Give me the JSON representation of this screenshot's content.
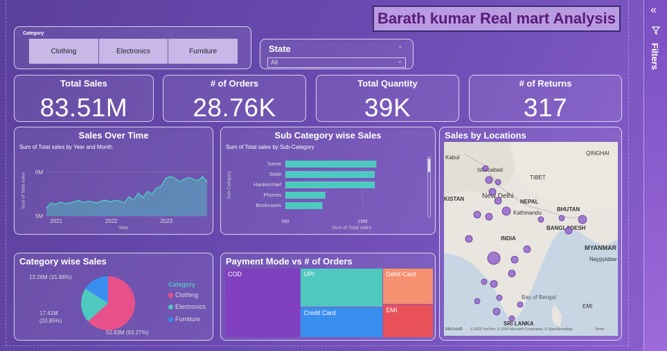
{
  "report_title": "Barath kumar Real mart Analysis",
  "category_slicer": {
    "label": "Category",
    "options": [
      "Clothing",
      "Electronics",
      "Furniture"
    ]
  },
  "state_slicer": {
    "label": "State",
    "value": "All"
  },
  "kpis": [
    {
      "label": "Total Sales",
      "value": "83.51M"
    },
    {
      "label": "# of Orders",
      "value": "28.76K"
    },
    {
      "label": "Total Quantity",
      "value": "39K"
    },
    {
      "label": "# of Returns",
      "value": "317"
    }
  ],
  "sales_over_time": {
    "title": "Sales Over Time",
    "subtitle": "Sum of Total sales by Year and Month",
    "ylabel": "Sum of Total sales",
    "xlabel": "Year",
    "yticks": [
      "5M",
      "0M"
    ],
    "xticks": [
      "2021",
      "2022",
      "2023"
    ]
  },
  "subcategory_sales": {
    "title": "Sub Category wise Sales",
    "subtitle": "Sum of Total sales by Sub-Category",
    "ylabel": "Sub-Category",
    "xlabel": "Sum of Total sales",
    "xticks": [
      "0M",
      "10M"
    ]
  },
  "category_wise": {
    "title": "Category wise Sales",
    "legend_title": "Category",
    "labels": [
      "13.26M (15.88%)",
      "17.41M (20.85%)",
      "52.83M (63.27%)"
    ]
  },
  "payment_mode": {
    "title": "Payment Mode vs # of Orders"
  },
  "sales_by_locations": {
    "title": "Sales by Locations",
    "labels": {
      "kabul": "Kabul",
      "islamabad": "Islamabad",
      "pakistan": "KISTAN",
      "new_delhi": "New Delhi",
      "nepal": "NEPAL",
      "kathmandu": "Kathmandu",
      "bhutan": "BHUTAN",
      "tibet": "TIBET",
      "qinghai": "QINGHAI",
      "bangladesh": "BANGLADESH",
      "india": "INDIA",
      "myanmar": "MYANMAR",
      "naypyidaw": "Naypyidaw",
      "bay_of_bengal": "Bay of Bengal",
      "sri_lanka": "SRI LANKA",
      "emi": "EMI"
    },
    "attribution": "© 2023 TomTom, © 2024 Microsoft Corporation, © OpenStreetMap",
    "terms": "Terms",
    "brand": "Microsoft"
  },
  "filters_pane": {
    "label": "Filters"
  },
  "chart_data": [
    {
      "type": "area",
      "title": "Sales Over Time",
      "subtitle": "Sum of Total sales by Year and Month",
      "xlabel": "Year",
      "ylabel": "Sum of Total sales",
      "x": [
        "2020-11",
        "2020-12",
        "2021-01",
        "2021-02",
        "2021-03",
        "2021-04",
        "2021-05",
        "2021-06",
        "2021-07",
        "2021-08",
        "2021-09",
        "2021-10",
        "2021-11",
        "2021-12",
        "2022-01",
        "2022-02",
        "2022-03",
        "2022-04",
        "2022-05",
        "2022-06",
        "2022-07",
        "2022-08",
        "2022-09",
        "2022-10",
        "2022-11",
        "2022-12",
        "2023-01",
        "2023-02",
        "2023-03",
        "2023-04",
        "2023-05",
        "2023-06",
        "2023-07",
        "2023-08",
        "2023-09",
        "2023-10"
      ],
      "values": [
        0.9,
        1.5,
        1.3,
        1.6,
        1.4,
        1.5,
        1.6,
        1.8,
        1.5,
        1.7,
        1.6,
        1.5,
        1.7,
        1.8,
        1.6,
        1.8,
        1.7,
        1.5,
        2.2,
        1.8,
        2.6,
        2.1,
        2.8,
        2.5,
        3.2,
        3.4,
        4.3,
        4.5,
        4.3,
        3.9,
        4.2,
        4.4,
        4.2,
        4.0,
        4.5,
        3.9
      ],
      "yticks": [
        0,
        5
      ],
      "ylim": [
        0,
        6
      ],
      "color": "#4ec9c0"
    },
    {
      "type": "bar",
      "orientation": "horizontal",
      "title": "Sub Category wise Sales",
      "subtitle": "Sum of Total sales by Sub-Category",
      "ylabel": "Sub-Category",
      "xlabel": "Sum of Total sales",
      "categories": [
        "Saree",
        "Stole",
        "Hankerchief",
        "Phones",
        "Bookcases"
      ],
      "values": [
        11.8,
        11.6,
        11.6,
        5.2,
        4.8
      ],
      "xlim": [
        0,
        15
      ],
      "color": "#4ec9c0"
    },
    {
      "type": "pie",
      "title": "Category wise Sales",
      "categories": [
        "Clothing",
        "Electronics",
        "Furniture"
      ],
      "values": [
        52.83,
        17.41,
        13.26
      ],
      "percent": [
        63.27,
        20.85,
        15.88
      ],
      "colors": [
        "#e8508a",
        "#4ec9c0",
        "#3a8ef0"
      ]
    },
    {
      "type": "heatmap",
      "subtype": "treemap",
      "title": "Payment Mode vs # of Orders",
      "categories": [
        "COD",
        "UPI",
        "Credit Card",
        "Debit Card",
        "EMI"
      ],
      "values": [
        9.2,
        5.6,
        4.4,
        3.2,
        2.9
      ],
      "colors": [
        "#8040c0",
        "#4ec9c0",
        "#3a8ef0",
        "#f59070",
        "#e8505a"
      ]
    }
  ]
}
